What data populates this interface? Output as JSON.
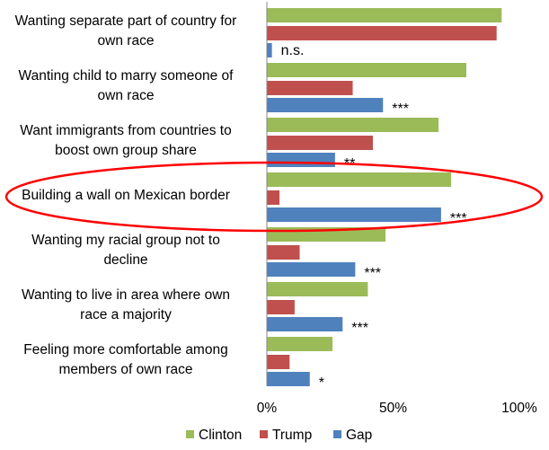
{
  "chart_data": {
    "type": "bar",
    "orientation": "horizontal",
    "title": "",
    "xlabel": "",
    "ylabel": "",
    "xlim": [
      0,
      100
    ],
    "grid": false,
    "legend_position": "bottom",
    "tick_labels": [
      "0%",
      "50%",
      "100%"
    ],
    "categories": [
      {
        "lines": [
          "Wanting separate part of country for",
          "own race"
        ],
        "sig": "n.s."
      },
      {
        "lines": [
          "Wanting child to marry someone of",
          "own race"
        ],
        "sig": "***"
      },
      {
        "lines": [
          "Want immigrants from countries to",
          "boost own group share"
        ],
        "sig": "**"
      },
      {
        "lines": [
          "Building a wall on Mexican border"
        ],
        "sig": "***"
      },
      {
        "lines": [
          "Wanting my racial group not to",
          "decline"
        ],
        "sig": "***"
      },
      {
        "lines": [
          "Wanting to live in area where own",
          "race a majority"
        ],
        "sig": "***"
      },
      {
        "lines": [
          "Feeling more comfortable among",
          "members of own race"
        ],
        "sig": "*"
      }
    ],
    "series": [
      {
        "name": "Clinton",
        "color": "#9BBB59",
        "values": [
          93,
          79,
          68,
          73,
          47,
          40,
          26
        ]
      },
      {
        "name": "Trump",
        "color": "#C0504D",
        "values": [
          91,
          34,
          42,
          5,
          13,
          11,
          9
        ]
      },
      {
        "name": "Gap",
        "color": "#4F81BD",
        "values": [
          2,
          46,
          27,
          69,
          35,
          30,
          17
        ]
      }
    ],
    "highlight": {
      "category_index": 3,
      "shape": "ellipse",
      "color": "#FF0000"
    }
  }
}
